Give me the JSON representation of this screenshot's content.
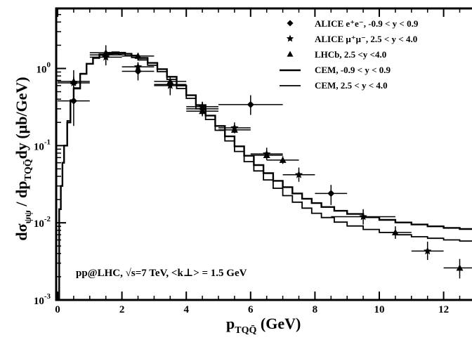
{
  "chart_data": {
    "type": "scatter",
    "xlabel": "p_TQQ̄ (GeV)",
    "ylabel": "dσ_ψψ / dp_TQQ̄ dy   (μb/GeV)",
    "xlim": [
      0,
      13
    ],
    "ylim": [
      0.001,
      6
    ],
    "y_scale": "log",
    "grid": false,
    "legend_position": "top-right",
    "x_ticks": [
      "0",
      "2",
      "4",
      "6",
      "8",
      "10",
      "12"
    ],
    "y_ticks": [
      {
        "value": 1,
        "base": "10",
        "exp": "0"
      },
      {
        "value": 0.1,
        "base": "10",
        "exp": "-1"
      },
      {
        "value": 0.01,
        "base": "10",
        "exp": "-2"
      },
      {
        "value": 0.001,
        "base": "10",
        "exp": "-3"
      }
    ],
    "annotation": "pp@LHC, √s=7 TeV, <k⊥> = 1.5 GeV",
    "legend": [
      {
        "label": "ALICE e⁺e⁻, -0.9 < y < 0.9",
        "marker": "diamond"
      },
      {
        "label": "ALICE μ⁺μ⁻, 2.5 < y < 4.0",
        "marker": "star"
      },
      {
        "label": "LHCb, 2.5 <y <4.0",
        "marker": "triangle"
      },
      {
        "label": "CEM, -0.9 < y < 0.9",
        "marker": "line"
      },
      {
        "label": "CEM, 2.5 < y < 4.0",
        "marker": "line"
      }
    ],
    "series": [
      {
        "name": "ALICE e⁺e⁻, -0.9 < y < 0.9",
        "marker": "diamond",
        "points": [
          {
            "x": 0.5,
            "y": 0.38,
            "xerr": 0.5,
            "ylo": 0.18,
            "yhi": 0.95
          },
          {
            "x": 1.5,
            "y": 1.5,
            "xerr": 0.5,
            "ylo": 1.1,
            "yhi": 2.0
          },
          {
            "x": 2.5,
            "y": 0.92,
            "xerr": 0.5,
            "ylo": 0.7,
            "yhi": 1.2
          },
          {
            "x": 3.5,
            "y": 0.62,
            "xerr": 0.5,
            "ylo": 0.45,
            "yhi": 0.8
          },
          {
            "x": 4.5,
            "y": 0.3,
            "xerr": 0.5,
            "ylo": 0.24,
            "yhi": 0.37
          },
          {
            "x": 6.0,
            "y": 0.34,
            "xerr": 1.0,
            "ylo": 0.25,
            "yhi": 0.45
          },
          {
            "x": 8.5,
            "y": 0.024,
            "xerr": 0.5,
            "ylo": 0.017,
            "yhi": 0.031
          }
        ]
      },
      {
        "name": "ALICE μ⁺μ⁻, 2.5 < y < 4.0",
        "marker": "star",
        "points": [
          {
            "x": 0.5,
            "y": 0.65,
            "xerr": 0.5,
            "ylo": 0.55,
            "yhi": 0.78
          },
          {
            "x": 1.5,
            "y": 1.4,
            "xerr": 0.5,
            "ylo": 1.2,
            "yhi": 1.6
          },
          {
            "x": 2.5,
            "y": 1.05,
            "xerr": 0.5,
            "ylo": 0.9,
            "yhi": 1.2
          },
          {
            "x": 3.5,
            "y": 0.6,
            "xerr": 0.5,
            "ylo": 0.52,
            "yhi": 0.7
          },
          {
            "x": 4.5,
            "y": 0.32,
            "xerr": 0.5,
            "ylo": 0.28,
            "yhi": 0.37
          },
          {
            "x": 5.5,
            "y": 0.17,
            "xerr": 0.5,
            "ylo": 0.145,
            "yhi": 0.2
          },
          {
            "x": 6.5,
            "y": 0.078,
            "xerr": 0.5,
            "ylo": 0.065,
            "yhi": 0.094
          },
          {
            "x": 7.5,
            "y": 0.042,
            "xerr": 0.5,
            "ylo": 0.034,
            "yhi": 0.052
          },
          {
            "x": 9.5,
            "y": 0.012,
            "xerr": 1.0,
            "ylo": 0.0095,
            "yhi": 0.015
          },
          {
            "x": 11.5,
            "y": 0.0043,
            "xerr": 0.5,
            "ylo": 0.0033,
            "yhi": 0.0057
          }
        ]
      },
      {
        "name": "LHCb, 2.5 <y <4.0",
        "marker": "triangle",
        "points": [
          {
            "x": 0.5,
            "y": 0.68,
            "xerr": 0.5,
            "ylo": 0.62,
            "yhi": 0.75
          },
          {
            "x": 1.5,
            "y": 1.6,
            "xerr": 0.5,
            "ylo": 1.45,
            "yhi": 1.75
          },
          {
            "x": 2.5,
            "y": 1.45,
            "xerr": 0.5,
            "ylo": 1.3,
            "yhi": 1.6
          },
          {
            "x": 3.5,
            "y": 0.68,
            "xerr": 0.5,
            "ylo": 0.6,
            "yhi": 0.76
          },
          {
            "x": 4.5,
            "y": 0.28,
            "xerr": 0.5,
            "ylo": 0.25,
            "yhi": 0.31
          },
          {
            "x": 5.5,
            "y": 0.16,
            "xerr": 0.5,
            "ylo": 0.145,
            "yhi": 0.18
          },
          {
            "x": 6.5,
            "y": 0.075,
            "xerr": 0.5,
            "ylo": 0.067,
            "yhi": 0.083
          },
          {
            "x": 7.0,
            "y": 0.065,
            "xerr": 0.5,
            "ylo": 0.058,
            "yhi": 0.073
          },
          {
            "x": 10.5,
            "y": 0.0075,
            "xerr": 0.5,
            "ylo": 0.0062,
            "yhi": 0.009
          },
          {
            "x": 12.5,
            "y": 0.0026,
            "xerr": 0.5,
            "ylo": 0.0019,
            "yhi": 0.0034
          }
        ]
      }
    ],
    "curves": [
      {
        "name": "CEM, -0.9 < y < 0.9",
        "x": [
          0.05,
          0.1,
          0.15,
          0.2,
          0.3,
          0.4,
          0.5,
          0.7,
          0.9,
          1.1,
          1.3,
          1.5,
          1.7,
          1.9,
          2.1,
          2.3,
          2.5,
          2.8,
          3.1,
          3.4,
          3.7,
          4.0,
          4.3,
          4.6,
          4.9,
          5.2,
          5.5,
          5.8,
          6.1,
          6.4,
          6.7,
          7.0,
          7.3,
          7.6,
          7.9,
          8.2,
          8.6,
          9.0,
          9.5,
          10.0,
          10.5,
          11.0,
          11.5,
          12.0,
          12.5,
          13.0
        ],
        "y": [
          0.015,
          0.03,
          0.06,
          0.1,
          0.2,
          0.38,
          0.55,
          0.85,
          1.15,
          1.38,
          1.52,
          1.6,
          1.62,
          1.6,
          1.55,
          1.47,
          1.37,
          1.18,
          0.98,
          0.78,
          0.6,
          0.45,
          0.335,
          0.245,
          0.18,
          0.132,
          0.098,
          0.074,
          0.056,
          0.044,
          0.035,
          0.029,
          0.024,
          0.0205,
          0.018,
          0.016,
          0.0143,
          0.013,
          0.0118,
          0.0109,
          0.0101,
          0.0095,
          0.009,
          0.0086,
          0.0083,
          0.008
        ]
      },
      {
        "name": "CEM, 2.5 < y < 4.0",
        "x": [
          0.05,
          0.1,
          0.15,
          0.2,
          0.3,
          0.4,
          0.5,
          0.7,
          0.9,
          1.1,
          1.3,
          1.5,
          1.7,
          1.9,
          2.1,
          2.3,
          2.5,
          2.8,
          3.1,
          3.4,
          3.7,
          4.0,
          4.3,
          4.6,
          4.9,
          5.2,
          5.5,
          5.8,
          6.1,
          6.4,
          6.7,
          7.0,
          7.3,
          7.6,
          7.9,
          8.2,
          8.6,
          9.0,
          9.5,
          10.0,
          10.5,
          11.0,
          11.5,
          12.0,
          12.5,
          13.0
        ],
        "y": [
          0.015,
          0.03,
          0.06,
          0.1,
          0.21,
          0.39,
          0.56,
          0.86,
          1.15,
          1.36,
          1.49,
          1.55,
          1.56,
          1.53,
          1.47,
          1.39,
          1.29,
          1.1,
          0.91,
          0.72,
          0.55,
          0.41,
          0.3,
          0.218,
          0.158,
          0.115,
          0.084,
          0.062,
          0.047,
          0.036,
          0.028,
          0.0225,
          0.0185,
          0.0155,
          0.0133,
          0.0117,
          0.0102,
          0.0091,
          0.0082,
          0.0075,
          0.007,
          0.0066,
          0.0063,
          0.006,
          0.0058,
          0.0056
        ]
      }
    ]
  }
}
